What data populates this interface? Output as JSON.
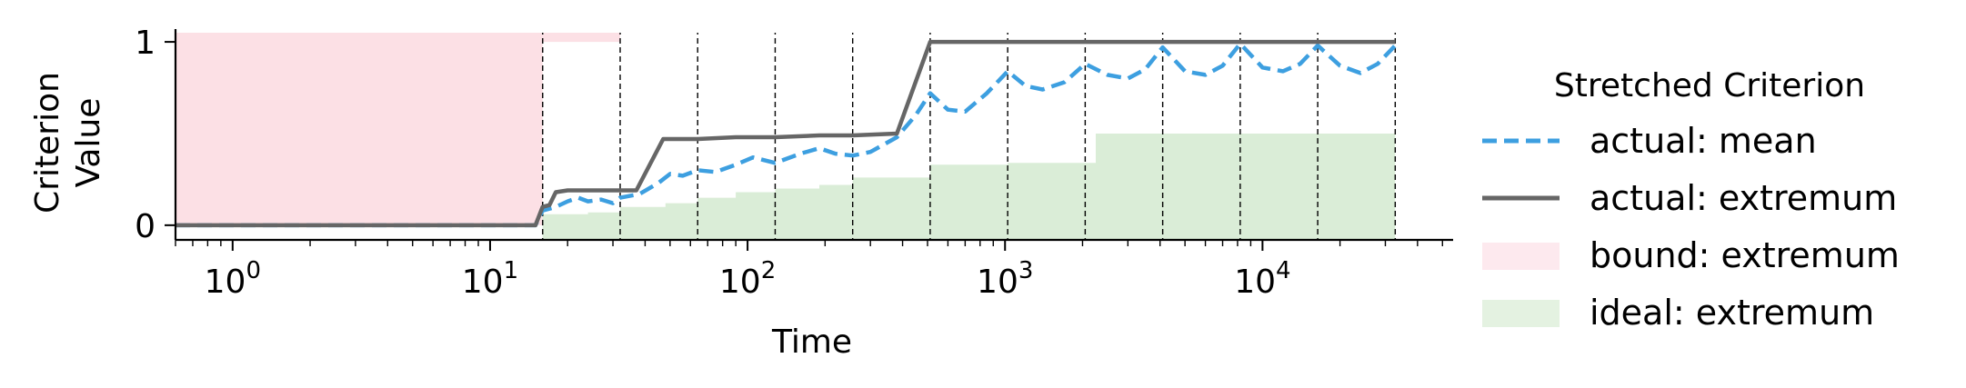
{
  "chart_data": {
    "type": "line",
    "xscale": "log",
    "xlabel": "Time",
    "ylabel_lines": [
      "Criterion",
      "Value"
    ],
    "xlim": [
      0.6,
      55000
    ],
    "ylim": [
      -0.08,
      1.05
    ],
    "x_ticks": [
      {
        "base": "10",
        "exp": "0",
        "value": 1
      },
      {
        "base": "10",
        "exp": "1",
        "value": 10
      },
      {
        "base": "10",
        "exp": "2",
        "value": 100
      },
      {
        "base": "10",
        "exp": "3",
        "value": 1000
      },
      {
        "base": "10",
        "exp": "4",
        "value": 10000
      }
    ],
    "y_ticks": [
      {
        "label": "0",
        "value": 0
      },
      {
        "label": "1",
        "value": 1
      }
    ],
    "vlines": [
      16,
      32,
      64,
      128,
      256,
      512,
      1024,
      2048,
      4096,
      8192,
      16384,
      32768
    ],
    "bound_region": {
      "color": "#f9c6d0",
      "polygon": [
        [
          0.6,
          1.05
        ],
        [
          16,
          1.05
        ],
        [
          16,
          0
        ],
        [
          0.6,
          0
        ]
      ]
    },
    "bound_small": {
      "color": "#f9c6d0",
      "x0": 16,
      "x1": 32,
      "y0": 1.0,
      "y1": 1.05
    },
    "ideal_region": {
      "color": "#cbe6c6",
      "steps": [
        [
          0.6,
          -0.08
        ],
        [
          16,
          -0.08
        ],
        [
          16,
          0.06
        ],
        [
          24,
          0.07
        ],
        [
          32,
          0.1
        ],
        [
          48,
          0.12
        ],
        [
          64,
          0.15
        ],
        [
          90,
          0.18
        ],
        [
          128,
          0.2
        ],
        [
          190,
          0.22
        ],
        [
          256,
          0.26
        ],
        [
          512,
          0.33
        ],
        [
          1024,
          0.34
        ],
        [
          2048,
          0.34
        ],
        [
          2250,
          0.5
        ],
        [
          32768,
          0.5
        ]
      ]
    },
    "series": [
      {
        "name": "actual: mean",
        "color": "#3d9fe0",
        "style": "dashed",
        "points": [
          [
            0.6,
            0.0
          ],
          [
            15,
            0.0
          ],
          [
            16,
            0.08
          ],
          [
            17,
            0.09
          ],
          [
            18,
            0.1
          ],
          [
            20,
            0.13
          ],
          [
            22,
            0.15
          ],
          [
            24,
            0.13
          ],
          [
            27,
            0.14
          ],
          [
            30,
            0.12
          ],
          [
            32,
            0.15
          ],
          [
            38,
            0.17
          ],
          [
            45,
            0.23
          ],
          [
            50,
            0.28
          ],
          [
            56,
            0.27
          ],
          [
            64,
            0.3
          ],
          [
            75,
            0.29
          ],
          [
            90,
            0.33
          ],
          [
            105,
            0.37
          ],
          [
            128,
            0.34
          ],
          [
            160,
            0.39
          ],
          [
            190,
            0.42
          ],
          [
            220,
            0.39
          ],
          [
            256,
            0.38
          ],
          [
            300,
            0.4
          ],
          [
            380,
            0.48
          ],
          [
            450,
            0.6
          ],
          [
            512,
            0.72
          ],
          [
            600,
            0.63
          ],
          [
            700,
            0.62
          ],
          [
            850,
            0.72
          ],
          [
            1024,
            0.84
          ],
          [
            1200,
            0.76
          ],
          [
            1400,
            0.74
          ],
          [
            1700,
            0.78
          ],
          [
            2048,
            0.88
          ],
          [
            2500,
            0.82
          ],
          [
            3000,
            0.8
          ],
          [
            3500,
            0.85
          ],
          [
            4096,
            0.97
          ],
          [
            5000,
            0.84
          ],
          [
            6000,
            0.82
          ],
          [
            7000,
            0.87
          ],
          [
            8192,
            0.99
          ],
          [
            10000,
            0.86
          ],
          [
            12000,
            0.84
          ],
          [
            14000,
            0.88
          ],
          [
            16384,
            0.98
          ],
          [
            20000,
            0.87
          ],
          [
            24000,
            0.83
          ],
          [
            28000,
            0.88
          ],
          [
            32768,
            0.98
          ]
        ]
      },
      {
        "name": "actual: extremum",
        "color": "#666666",
        "style": "solid",
        "points": [
          [
            0.6,
            0.0
          ],
          [
            15,
            0.0
          ],
          [
            16,
            0.1
          ],
          [
            17,
            0.11
          ],
          [
            18,
            0.18
          ],
          [
            20,
            0.19
          ],
          [
            32,
            0.19
          ],
          [
            37,
            0.19
          ],
          [
            47,
            0.47
          ],
          [
            64,
            0.47
          ],
          [
            90,
            0.48
          ],
          [
            128,
            0.48
          ],
          [
            190,
            0.49
          ],
          [
            256,
            0.49
          ],
          [
            380,
            0.5
          ],
          [
            512,
            1.0
          ],
          [
            1024,
            1.0
          ],
          [
            32768,
            1.0
          ]
        ]
      }
    ],
    "legend": {
      "title": "Stretched Criterion",
      "position": "right",
      "entries": [
        {
          "label": "actual: mean",
          "kind": "dashed-line",
          "color": "#3d9fe0"
        },
        {
          "label": "actual: extremum",
          "kind": "solid-line",
          "color": "#666666"
        },
        {
          "label": "bound: extremum",
          "kind": "patch",
          "color": "#fde9ee"
        },
        {
          "label": "ideal: extremum",
          "kind": "patch",
          "color": "#e4f2e1"
        }
      ]
    }
  }
}
